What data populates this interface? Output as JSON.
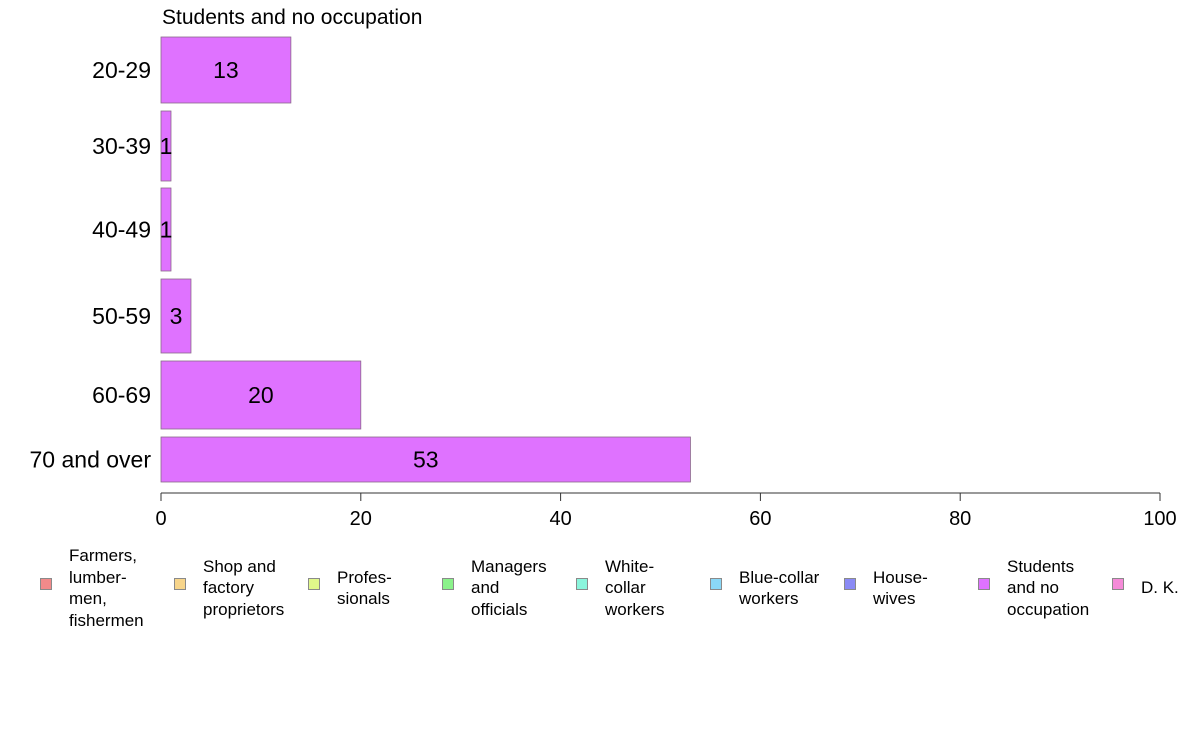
{
  "chart_data": {
    "type": "bar",
    "orientation": "horizontal",
    "title": "Students and no occupation",
    "categories": [
      "20-29",
      "30-39",
      "40-49",
      "50-59",
      "60-69",
      "70 and over"
    ],
    "series": [
      {
        "name": "Students and no occupation",
        "values": [
          13,
          1,
          1,
          3,
          20,
          53
        ],
        "color": "#df72ff"
      }
    ],
    "data_labels": [
      "13",
      "1",
      "1",
      "3",
      "20",
      "53"
    ],
    "xlim": [
      0,
      100
    ],
    "x_ticks": [
      0,
      20,
      40,
      60,
      80,
      100
    ],
    "grid": false,
    "legend": {
      "placement": "bottom",
      "items": [
        {
          "label": "Farmers,\nlumber-\nmen,\nfishermen",
          "color": "#f28a8a"
        },
        {
          "label": "Shop and\nfactory\nproprietors",
          "color": "#f7d58b"
        },
        {
          "label": "Profes-\nsionals",
          "color": "#e0f88a"
        },
        {
          "label": "Managers\nand\nofficials",
          "color": "#8af28a"
        },
        {
          "label": "White-\ncollar\nworkers",
          "color": "#8af5dc"
        },
        {
          "label": "Blue-collar\nworkers",
          "color": "#8ad8f7"
        },
        {
          "label": "House-\nwives",
          "color": "#8a8af5"
        },
        {
          "label": "Students\nand no\noccupation",
          "color": "#df72ff"
        },
        {
          "label": "D. K.",
          "color": "#f58ad8"
        }
      ]
    }
  }
}
